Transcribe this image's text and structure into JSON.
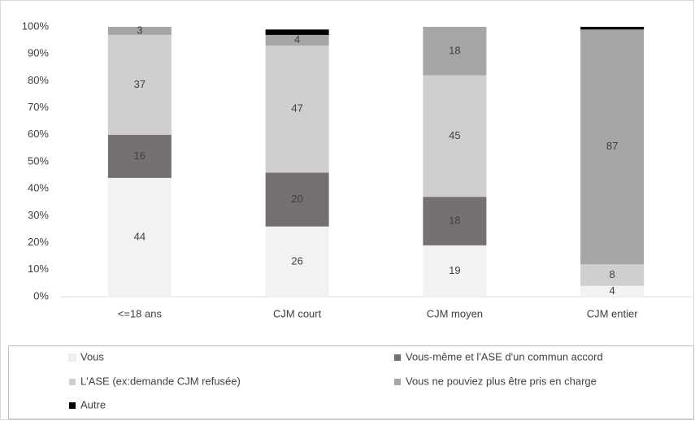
{
  "chart_data": {
    "type": "stacked_bar",
    "categories": [
      "<=18 ans",
      "CJM court",
      "CJM moyen",
      "CJM entier"
    ],
    "series": [
      {
        "name": "Vous",
        "color": "#f2f2f2",
        "values": [
          44,
          26,
          19,
          4
        ],
        "show_labels": true
      },
      {
        "name": "Vous-même et l'ASE d'un commun accord",
        "color": "#767171",
        "values": [
          16,
          20,
          18,
          0
        ],
        "show_labels": true
      },
      {
        "name": "L'ASE (ex:demande CJM refusée)",
        "color": "#d0cece",
        "values": [
          37,
          47,
          45,
          8
        ],
        "show_labels": true
      },
      {
        "name": "Vous ne pouviez plus être pris en charge",
        "color": "#a6a6a6",
        "values": [
          3,
          4,
          18,
          87
        ],
        "show_labels": true
      },
      {
        "name": "Autre",
        "color": "#000000",
        "values": [
          0,
          2,
          0,
          1
        ],
        "show_labels": false
      }
    ],
    "ylim": [
      0,
      100
    ],
    "yticks": [
      {
        "value": 0,
        "label": "0%"
      },
      {
        "value": 10,
        "label": "10%"
      },
      {
        "value": 20,
        "label": "20%"
      },
      {
        "value": 30,
        "label": "30%"
      },
      {
        "value": 40,
        "label": "40%"
      },
      {
        "value": 50,
        "label": "50%"
      },
      {
        "value": 60,
        "label": "60%"
      },
      {
        "value": 70,
        "label": "70%"
      },
      {
        "value": 80,
        "label": "80%"
      },
      {
        "value": 90,
        "label": "90%"
      },
      {
        "value": 100,
        "label": "100%"
      }
    ],
    "grid": false
  }
}
